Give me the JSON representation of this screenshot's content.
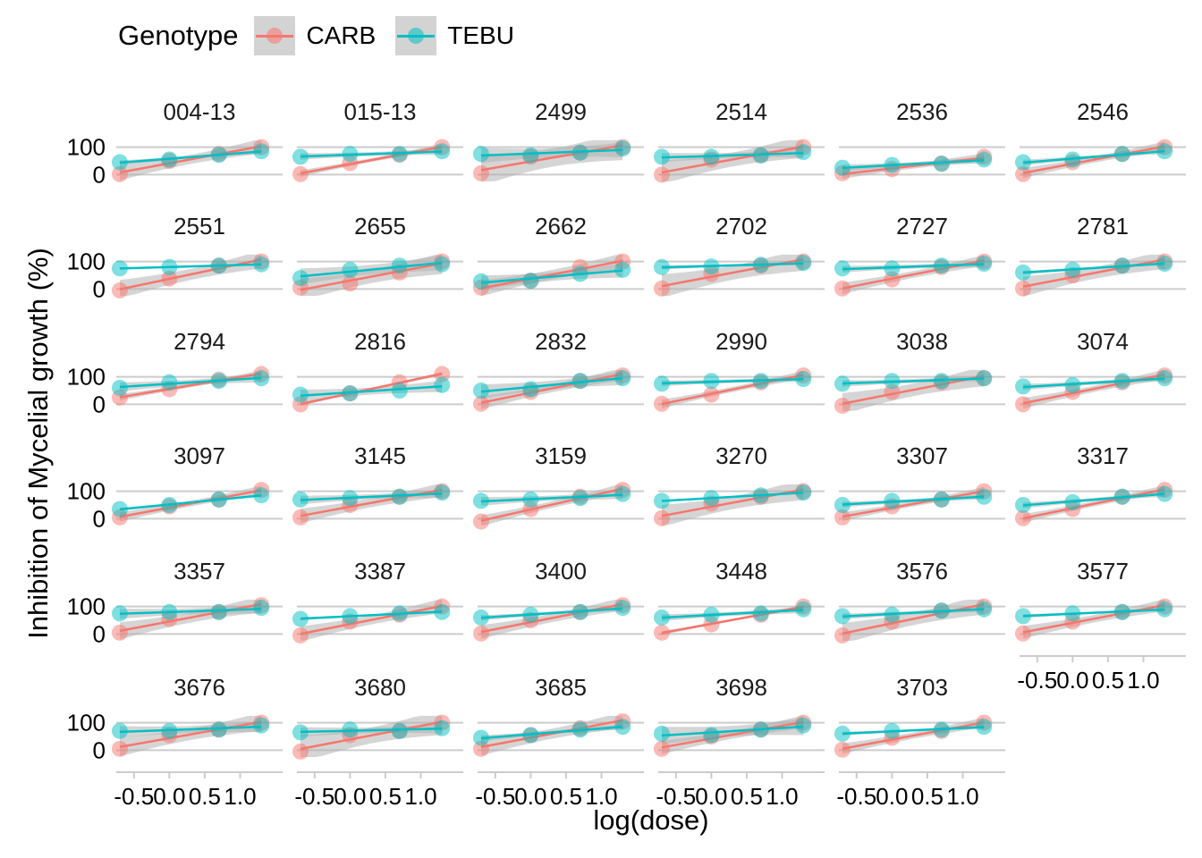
{
  "legend": {
    "title": "Genotype",
    "entries": [
      {
        "label": "CARB",
        "color": "#F8766D"
      },
      {
        "label": "TEBU",
        "color": "#00BFC4"
      }
    ]
  },
  "colors": {
    "CARB": "#F8766D",
    "TEBU": "#00BFC4",
    "ribbon": "#b3b3b3",
    "grid": "#cccccc"
  },
  "chart_data": {
    "type": "scatter",
    "title": "",
    "xlabel": "log(dose)",
    "ylabel": "Inhibition of Mycelial growth (%)",
    "facet_layout": {
      "columns": 6
    },
    "xlim": [
      -0.75,
      1.6
    ],
    "ylim": [
      -15,
      115
    ],
    "x_ticks": [
      -0.5,
      0.0,
      0.5,
      1.0
    ],
    "x_tick_labels": [
      "-0.5",
      "0.0",
      "0.5",
      "1.0"
    ],
    "y_ticks": [
      0,
      100
    ],
    "y_tick_labels": [
      "0",
      "100"
    ],
    "x": [
      -0.7,
      0.0,
      0.7,
      1.3
    ],
    "grid": "horizontal major lines",
    "legend_position": "top-left",
    "smooth": "linear fit with confidence ribbon",
    "panels": [
      {
        "id": "004-13",
        "CARB": [
          2,
          50,
          75,
          100
        ],
        "TEBU": [
          45,
          55,
          72,
          85
        ]
      },
      {
        "id": "015-13",
        "CARB": [
          2,
          42,
          72,
          100
        ],
        "TEBU": [
          65,
          75,
          75,
          85
        ]
      },
      {
        "id": "2499",
        "CARB": [
          5,
          65,
          80,
          100
        ],
        "TEBU": [
          75,
          70,
          80,
          95
        ]
      },
      {
        "id": "2514",
        "CARB": [
          0,
          55,
          70,
          100
        ],
        "TEBU": [
          65,
          65,
          70,
          82
        ]
      },
      {
        "id": "2536",
        "CARB": [
          5,
          20,
          40,
          65
        ],
        "TEBU": [
          25,
          35,
          40,
          55
        ]
      },
      {
        "id": "2546",
        "CARB": [
          2,
          45,
          75,
          100
        ],
        "TEBU": [
          45,
          55,
          75,
          85
        ]
      },
      {
        "id": "2551",
        "CARB": [
          -5,
          38,
          85,
          100
        ],
        "TEBU": [
          75,
          80,
          85,
          90
        ]
      },
      {
        "id": "2655",
        "CARB": [
          5,
          20,
          60,
          100
        ],
        "TEBU": [
          40,
          70,
          85,
          90
        ]
      },
      {
        "id": "2662",
        "CARB": [
          5,
          30,
          80,
          100
        ],
        "TEBU": [
          28,
          30,
          55,
          70
        ]
      },
      {
        "id": "2702",
        "CARB": [
          2,
          55,
          85,
          100
        ],
        "TEBU": [
          80,
          82,
          88,
          95
        ]
      },
      {
        "id": "2727",
        "CARB": [
          2,
          35,
          80,
          100
        ],
        "TEBU": [
          75,
          75,
          85,
          92
        ]
      },
      {
        "id": "2781",
        "CARB": [
          2,
          50,
          85,
          100
        ],
        "TEBU": [
          60,
          70,
          85,
          92
        ]
      },
      {
        "id": "2794",
        "CARB": [
          25,
          55,
          90,
          110
        ],
        "TEBU": [
          60,
          80,
          85,
          95
        ]
      },
      {
        "id": "2816",
        "CARB": [
          0,
          40,
          80,
          110
        ],
        "TEBU": [
          35,
          40,
          50,
          70
        ]
      },
      {
        "id": "2832",
        "CARB": [
          2,
          45,
          85,
          105
        ],
        "TEBU": [
          50,
          55,
          85,
          95
        ]
      },
      {
        "id": "2990",
        "CARB": [
          2,
          35,
          80,
          105
        ],
        "TEBU": [
          75,
          85,
          85,
          92
        ]
      },
      {
        "id": "3038",
        "CARB": [
          -5,
          45,
          80,
          95
        ],
        "TEBU": [
          75,
          85,
          85,
          95
        ]
      },
      {
        "id": "3074",
        "CARB": [
          0,
          45,
          80,
          105
        ],
        "TEBU": [
          65,
          70,
          85,
          95
        ]
      },
      {
        "id": "3097",
        "CARB": [
          5,
          45,
          70,
          105
        ],
        "TEBU": [
          35,
          50,
          70,
          85
        ]
      },
      {
        "id": "3145",
        "CARB": [
          5,
          50,
          80,
          100
        ],
        "TEBU": [
          70,
          75,
          80,
          95
        ]
      },
      {
        "id": "3159",
        "CARB": [
          -10,
          35,
          80,
          105
        ],
        "TEBU": [
          65,
          70,
          75,
          90
        ]
      },
      {
        "id": "3270",
        "CARB": [
          2,
          55,
          80,
          100
        ],
        "TEBU": [
          65,
          75,
          85,
          95
        ]
      },
      {
        "id": "3307",
        "CARB": [
          5,
          45,
          70,
          100
        ],
        "TEBU": [
          50,
          65,
          70,
          80
        ]
      },
      {
        "id": "3317",
        "CARB": [
          2,
          35,
          80,
          105
        ],
        "TEBU": [
          50,
          60,
          80,
          90
        ]
      },
      {
        "id": "3357",
        "CARB": [
          5,
          55,
          80,
          105
        ],
        "TEBU": [
          75,
          80,
          80,
          95
        ]
      },
      {
        "id": "3387",
        "CARB": [
          -5,
          45,
          70,
          100
        ],
        "TEBU": [
          55,
          65,
          75,
          80
        ]
      },
      {
        "id": "3400",
        "CARB": [
          2,
          50,
          80,
          105
        ],
        "TEBU": [
          60,
          70,
          80,
          95
        ]
      },
      {
        "id": "3448",
        "CARB": [
          5,
          35,
          70,
          100
        ],
        "TEBU": [
          60,
          70,
          75,
          90
        ]
      },
      {
        "id": "3576",
        "CARB": [
          -5,
          45,
          85,
          100
        ],
        "TEBU": [
          65,
          70,
          85,
          90
        ]
      },
      {
        "id": "3577",
        "CARB": [
          2,
          45,
          80,
          100
        ],
        "TEBU": [
          65,
          75,
          80,
          90
        ]
      },
      {
        "id": "3676",
        "CARB": [
          5,
          55,
          75,
          100
        ],
        "TEBU": [
          70,
          70,
          75,
          90
        ]
      },
      {
        "id": "3680",
        "CARB": [
          -5,
          55,
          70,
          100
        ],
        "TEBU": [
          65,
          75,
          70,
          80
        ]
      },
      {
        "id": "3685",
        "CARB": [
          5,
          55,
          80,
          105
        ],
        "TEBU": [
          45,
          55,
          75,
          85
        ]
      },
      {
        "id": "3698",
        "CARB": [
          5,
          50,
          75,
          100
        ],
        "TEBU": [
          60,
          55,
          75,
          90
        ]
      },
      {
        "id": "3703",
        "CARB": [
          2,
          45,
          70,
          100
        ],
        "TEBU": [
          60,
          70,
          75,
          85
        ]
      }
    ]
  }
}
